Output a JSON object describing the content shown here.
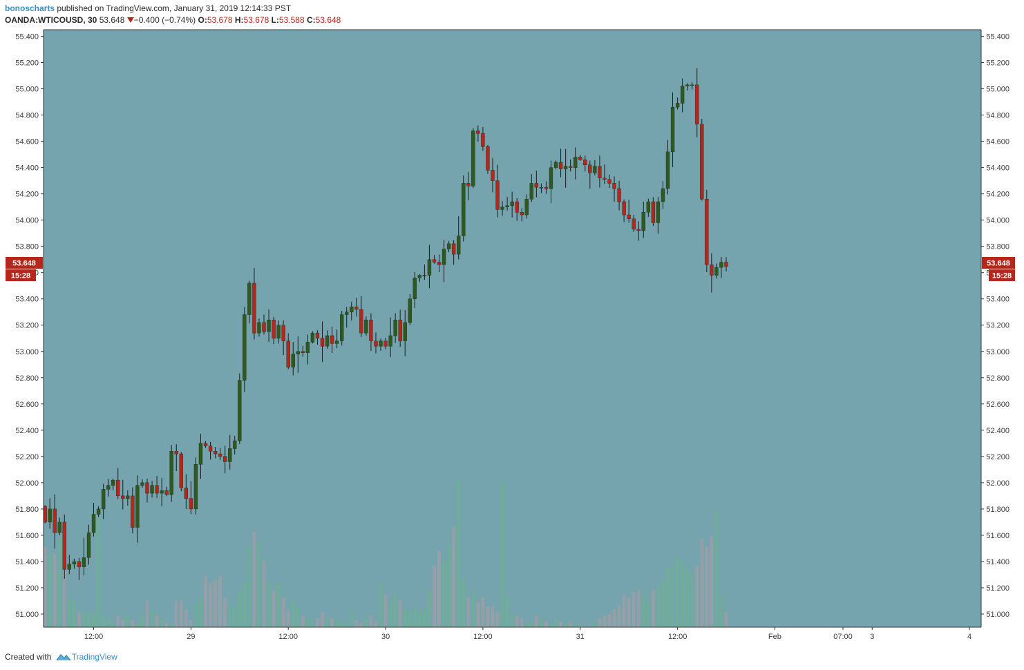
{
  "header": {
    "author": "bonoscharts",
    "published_text": "published on TradingView.com, January 31, 2019 12:14:33 PST",
    "symbol": "OANDA:WTICOUSD, 30",
    "last": "53.648",
    "change": "−0.400 (−0.74%)",
    "open_label": "O:",
    "open": "53.678",
    "high_label": "H:",
    "high": "53.678",
    "low_label": "L:",
    "low": "53.588",
    "close_label": "C:",
    "close": "53.648",
    "down_arrow_icon": "triangle-down-icon"
  },
  "footer": {
    "created_with": "Created with",
    "brand": "TradingView",
    "logo_icon": "tradingview-logo-icon"
  },
  "price_tag": {
    "price": "53.648",
    "countdown": "15:28"
  },
  "colors": {
    "background": "#75a3ae",
    "up": "#2e5a20",
    "down": "#b5261c",
    "wick": "#1b1b1b",
    "volume_up": "#6fae96",
    "volume_down": "#9a9fa6",
    "tag": "#b5261c"
  },
  "chart_data": {
    "type": "candlestick",
    "symbol": "OANDA:WTICOUSD",
    "interval": "30",
    "y_ticks": [
      "51.000",
      "51.200",
      "51.400",
      "51.600",
      "51.800",
      "52.000",
      "52.200",
      "52.400",
      "52.600",
      "52.800",
      "53.000",
      "53.200",
      "53.400",
      "53.600",
      "53.800",
      "54.000",
      "54.200",
      "54.400",
      "54.600",
      "54.800",
      "55.000",
      "55.200",
      "55.400"
    ],
    "ylim": [
      50.9,
      55.45
    ],
    "x_ticks": [
      {
        "label": "12:00",
        "bar": 10
      },
      {
        "label": "29",
        "bar": 30
      },
      {
        "label": "12:00",
        "bar": 50
      },
      {
        "label": "30",
        "bar": 70
      },
      {
        "label": "12:00",
        "bar": 90
      },
      {
        "label": "31",
        "bar": 110
      },
      {
        "label": "12:00",
        "bar": 130
      },
      {
        "label": "Feb",
        "bar": 150
      },
      {
        "label": "07:00",
        "bar": 164
      },
      {
        "label": "3",
        "bar": 170
      },
      {
        "label": "4",
        "bar": 190
      }
    ],
    "x_range_bars": [
      -0.3,
      192.4
    ],
    "ohlc_path": [
      51.82,
      51.7,
      51.8,
      51.62,
      51.7,
      51.34,
      51.38,
      51.4,
      51.36,
      51.43,
      51.62,
      51.76,
      51.8,
      51.95,
      51.98,
      52.02,
      51.9,
      51.88,
      51.9,
      51.66,
      51.98,
      52.0,
      51.92,
      51.98,
      51.92,
      51.94,
      51.91,
      52.24,
      52.22,
      51.96,
      51.88,
      51.8,
      52.14,
      52.3,
      52.28,
      52.24,
      52.22,
      52.2,
      52.16,
      52.26,
      52.32,
      52.78,
      53.28,
      53.52,
      53.14,
      53.22,
      53.15,
      53.24,
      53.1,
      53.2,
      53.08,
      52.88,
      52.98,
      53.0,
      52.99,
      53.07,
      53.14,
      53.1,
      53.04,
      53.12,
      53.06,
      53.08,
      53.28,
      53.3,
      53.34,
      53.32,
      53.14,
      53.24,
      53.08,
      53.04,
      53.08,
      53.04,
      53.12,
      53.24,
      53.08,
      53.22,
      53.4,
      53.56,
      53.58,
      53.58,
      53.7,
      53.68,
      53.66,
      53.78,
      53.82,
      53.74,
      53.88,
      54.28,
      54.26,
      54.68,
      54.66,
      54.56,
      54.38,
      54.3,
      54.08,
      54.1,
      54.11,
      54.14,
      54.06,
      54.04,
      54.16,
      54.28,
      54.25,
      54.25,
      54.24,
      54.4,
      54.44,
      54.39,
      54.41,
      54.4,
      54.48,
      54.46,
      54.42,
      54.36,
      54.41,
      54.32,
      54.31,
      54.28,
      54.24,
      54.14,
      54.04,
      54.01,
      53.93,
      53.92,
      54.06,
      54.14,
      53.98,
      54.14,
      54.24,
      54.52,
      54.86,
      54.89,
      55.02,
      55.03,
      55.03,
      54.73,
      54.16,
      53.66,
      53.58,
      53.64,
      53.68,
      53.648
    ],
    "volume_scale_top_price": 52.02,
    "volume_heights_rel": [
      0.55,
      0.5,
      0.5,
      0.6,
      0.42,
      0.2,
      0.18,
      0.1,
      0.1,
      0.09,
      0.1,
      0.75,
      0.08,
      0.06,
      0.03,
      0.08,
      0.05,
      0.08,
      0.05,
      0.03,
      0.08,
      0.18,
      0.12,
      0.08,
      0.05,
      0.03,
      0.02,
      0.18,
      0.18,
      0.12,
      0.05,
      0.16,
      0.2,
      0.35,
      0.3,
      0.32,
      0.35,
      0.2,
      0.14,
      0.14,
      0.25,
      0.3,
      0.55,
      0.65,
      0.58,
      0.45,
      0.3,
      0.25,
      0.3,
      0.2,
      0.12,
      0.18,
      0.14,
      0.08,
      0.06,
      0.04,
      0.06,
      0.1,
      0.05,
      0.06,
      0.05,
      0.04,
      0.02,
      0.1,
      0.05,
      0.03,
      0.06,
      0.08,
      0.04,
      0.3,
      0.22,
      0.18,
      0.24,
      0.18,
      0.12,
      0.12,
      0.14,
      0.12,
      0.12,
      0.25,
      0.42,
      0.52,
      0.45,
      0.55,
      0.68,
      1.0,
      0.34,
      0.2,
      0.25,
      0.17,
      0.2,
      0.14,
      0.14,
      0.1,
      0.98,
      0.22,
      0.08,
      0.08,
      0.06,
      0.02,
      0.04,
      0.08,
      0.05,
      0.04,
      0.02,
      0.06,
      0.04,
      0.03,
      0.03,
      0.02,
      0.01,
      0.01,
      0.01,
      0.03,
      0.06,
      0.08,
      0.09,
      0.12,
      0.15,
      0.22,
      0.2,
      0.24,
      0.25,
      0.22,
      0.18,
      0.25,
      0.28,
      0.32,
      0.4,
      0.42,
      0.48,
      0.45,
      0.4,
      0.35,
      0.42,
      0.6,
      0.55,
      0.62,
      0.8,
      0.22,
      0.1
    ]
  }
}
